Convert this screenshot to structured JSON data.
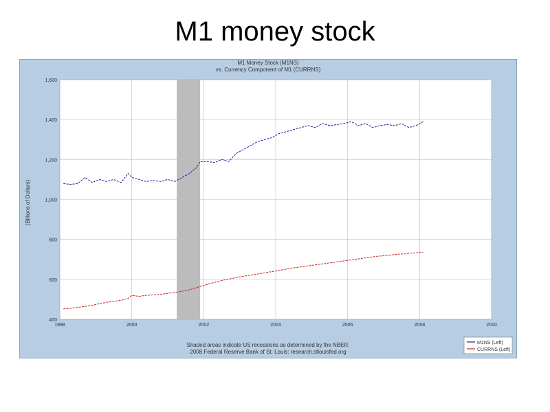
{
  "slide": {
    "title": "M1 money stock"
  },
  "colors": {
    "frame_bg": "#b7cde3",
    "plot_bg": "#ffffff",
    "grid": "#bfbfbf",
    "recession": "#bcbcbc",
    "m1": "#1a1aa8",
    "currency": "#c41a1a"
  },
  "chart_data": {
    "type": "line",
    "title": "M1 Money Stock (M1NS)",
    "subtitle": "vs. Currency Component of M1 (CURRNS)",
    "xlabel": "",
    "ylabel": "(Billions of Dollars)",
    "xlim": [
      1998,
      2010
    ],
    "ylim": [
      400,
      1600
    ],
    "x_ticks": [
      1998,
      2000,
      2002,
      2004,
      2006,
      2008,
      2010
    ],
    "x_tick_labels": [
      "1998",
      "2000",
      "2002",
      "2004",
      "2006",
      "2008",
      "2010"
    ],
    "y_ticks": [
      400,
      600,
      800,
      1000,
      1200,
      1400,
      1600
    ],
    "y_tick_labels": [
      "400",
      "600",
      "800",
      "1,000",
      "1,200",
      "1,400",
      "1,600"
    ],
    "recessions": [
      [
        2001.25,
        2001.9
      ]
    ],
    "series": [
      {
        "name": "M1NS (Left)",
        "color": "#1a1aa8",
        "x": [
          1998.1,
          1998.3,
          1998.5,
          1998.7,
          1998.9,
          1999.1,
          1999.3,
          1999.5,
          1999.7,
          1999.9,
          2000.0,
          2000.2,
          2000.4,
          2000.6,
          2000.8,
          2001.0,
          2001.2,
          2001.4,
          2001.6,
          2001.8,
          2001.9,
          2002.1,
          2002.3,
          2002.5,
          2002.7,
          2002.9,
          2003.1,
          2003.3,
          2003.5,
          2003.7,
          2003.9,
          2004.1,
          2004.3,
          2004.5,
          2004.7,
          2004.9,
          2005.1,
          2005.3,
          2005.5,
          2005.7,
          2005.9,
          2006.1,
          2006.3,
          2006.5,
          2006.7,
          2006.9,
          2007.1,
          2007.3,
          2007.5,
          2007.7,
          2007.9,
          2008.1
        ],
        "values": [
          1080,
          1075,
          1080,
          1110,
          1085,
          1100,
          1090,
          1100,
          1085,
          1130,
          1110,
          1100,
          1090,
          1095,
          1090,
          1100,
          1090,
          1110,
          1130,
          1160,
          1190,
          1190,
          1185,
          1200,
          1190,
          1230,
          1250,
          1270,
          1290,
          1300,
          1310,
          1330,
          1340,
          1350,
          1360,
          1370,
          1360,
          1380,
          1370,
          1375,
          1380,
          1390,
          1370,
          1380,
          1360,
          1370,
          1375,
          1370,
          1380,
          1360,
          1370,
          1390
        ]
      },
      {
        "name": "CURRNS (Left)",
        "color": "#c41a1a",
        "x": [
          1998.1,
          1998.3,
          1998.5,
          1998.7,
          1998.9,
          1999.1,
          1999.3,
          1999.5,
          1999.7,
          1999.9,
          2000.0,
          2000.2,
          2000.4,
          2000.6,
          2000.8,
          2001.0,
          2001.2,
          2001.4,
          2001.6,
          2001.8,
          2002.0,
          2002.2,
          2002.4,
          2002.6,
          2002.8,
          2003.0,
          2003.2,
          2003.4,
          2003.6,
          2003.8,
          2004.0,
          2004.2,
          2004.4,
          2004.6,
          2004.8,
          2005.0,
          2005.2,
          2005.4,
          2005.6,
          2005.8,
          2006.0,
          2006.2,
          2006.4,
          2006.6,
          2006.8,
          2007.0,
          2007.2,
          2007.4,
          2007.6,
          2007.8,
          2008.0,
          2008.1
        ],
        "values": [
          452,
          455,
          460,
          465,
          470,
          478,
          485,
          490,
          495,
          505,
          520,
          515,
          520,
          522,
          525,
          530,
          535,
          540,
          548,
          558,
          570,
          580,
          590,
          598,
          605,
          612,
          618,
          624,
          630,
          636,
          642,
          648,
          655,
          660,
          665,
          670,
          675,
          680,
          685,
          690,
          695,
          700,
          705,
          710,
          715,
          718,
          722,
          726,
          728,
          732,
          734,
          736
        ]
      }
    ],
    "legend": {
      "placement": "bottom-right",
      "entries": [
        "M1NS (Left)",
        "CURRNS (Left)"
      ]
    },
    "footer_note": "Shaded areas indicate US recessions as determined by the NBER.",
    "footer_credit": "2008 Federal Reserve Bank of St. Louis: research.stlouisfed.org"
  }
}
